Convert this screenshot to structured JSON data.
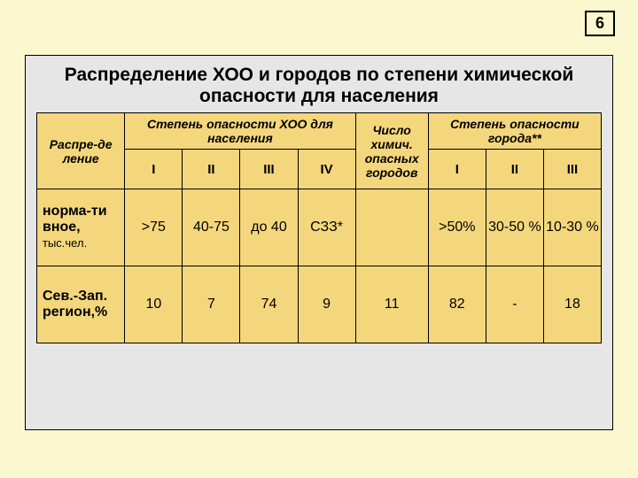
{
  "page_number": "6",
  "title_line1": "Распределение ХОО и городов по степени химической",
  "title_line2": "опасности для населения",
  "colors": {
    "page_bg": "#fbf8cf",
    "panel_bg": "#e6e6e6",
    "cell_bg": "#f4d77d",
    "border": "#000000"
  },
  "headers": {
    "col1": "Распре-де ление",
    "group1": "Степень опасности ХОО для населения",
    "group2": "Число химич. опасных городов",
    "group3": "Степень опасности города**",
    "sub": [
      "I",
      "II",
      "III",
      "IV",
      "I",
      "II",
      "III"
    ]
  },
  "rows": [
    {
      "label_main": "норма-ти вное,",
      "label_sub": "тыс.чел.",
      "cells": [
        ">75",
        "40-75",
        "до 40",
        "СЗЗ*",
        "",
        ">50%",
        "30-50 %",
        "10-30 %"
      ]
    },
    {
      "label_main": "Сев.-Зап. регион,%",
      "label_sub": "",
      "cells": [
        "10",
        "7",
        "74",
        "9",
        "11",
        "82",
        "-",
        "18"
      ]
    }
  ]
}
